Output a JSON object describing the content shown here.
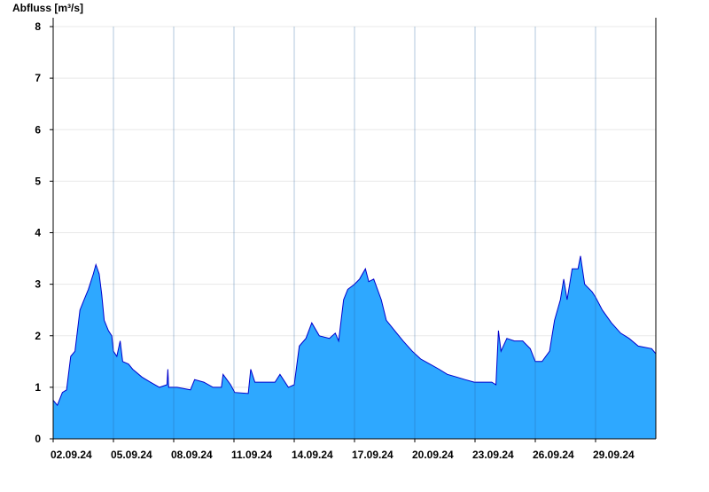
{
  "chart_data": {
    "type": "area",
    "ylabel": "Abfluss [m³/s]",
    "color": "#2ea8ff",
    "line_color": "#0000cc",
    "grid": true,
    "xlim": [
      "2024-09-02T00:00",
      "2024-10-02T00:00"
    ],
    "xticks": [
      {
        "value": "2024-09-02T00:00",
        "label": "02.09.24"
      },
      {
        "value": "2024-09-05T00:00",
        "label": "05.09.24"
      },
      {
        "value": "2024-09-08T00:00",
        "label": "08.09.24"
      },
      {
        "value": "2024-09-11T00:00",
        "label": "11.09.24"
      },
      {
        "value": "2024-09-14T00:00",
        "label": "14.09.24"
      },
      {
        "value": "2024-09-17T00:00",
        "label": "17.09.24"
      },
      {
        "value": "2024-09-20T00:00",
        "label": "20.09.24"
      },
      {
        "value": "2024-09-23T00:00",
        "label": "23.09.24"
      },
      {
        "value": "2024-09-26T00:00",
        "label": "26.09.24"
      },
      {
        "value": "2024-09-29T00:00",
        "label": "29.09.24"
      }
    ],
    "ylim": [
      0,
      8
    ],
    "yticks": [
      0,
      1,
      2,
      3,
      4,
      5,
      6,
      7,
      8
    ],
    "x": [
      "2024-09-02T00:00",
      "2024-09-02T05:00",
      "2024-09-02T11:00",
      "2024-09-02T16:00",
      "2024-09-02T21:00",
      "2024-09-03T02:00",
      "2024-09-03T08:00",
      "2024-09-03T13:00",
      "2024-09-03T18:00",
      "2024-09-04T00:00",
      "2024-09-04T03:00",
      "2024-09-04T07:00",
      "2024-09-04T10:00",
      "2024-09-04T13:00",
      "2024-09-04T18:00",
      "2024-09-04T22:00",
      "2024-09-05T00:00",
      "2024-09-05T04:00",
      "2024-09-05T08:00",
      "2024-09-05T11:00",
      "2024-09-05T18:00",
      "2024-09-05T23:00",
      "2024-09-06T10:00",
      "2024-09-06T20:00",
      "2024-09-07T07:00",
      "2024-09-07T16:00",
      "2024-09-07T17:00",
      "2024-09-07T18:00",
      "2024-09-08T04:00",
      "2024-09-08T20:00",
      "2024-09-09T01:00",
      "2024-09-09T12:00",
      "2024-09-09T23:00",
      "2024-09-10T09:00",
      "2024-09-10T11:00",
      "2024-09-10T20:00",
      "2024-09-11T01:00",
      "2024-09-11T17:00",
      "2024-09-11T20:00",
      "2024-09-12T01:00",
      "2024-09-12T14:00",
      "2024-09-13T01:00",
      "2024-09-13T07:00",
      "2024-09-13T17:00",
      "2024-09-14T00:00",
      "2024-09-14T06:00",
      "2024-09-14T14:00",
      "2024-09-14T21:00",
      "2024-09-15T06:00",
      "2024-09-15T18:00",
      "2024-09-16T01:00",
      "2024-09-16T05:00",
      "2024-09-16T11:00",
      "2024-09-16T16:00",
      "2024-09-17T00:00",
      "2024-09-17T06:00",
      "2024-09-17T13:00",
      "2024-09-17T17:00",
      "2024-09-17T23:00",
      "2024-09-18T08:00",
      "2024-09-18T14:00",
      "2024-09-19T00:00",
      "2024-09-19T10:00",
      "2024-09-19T21:00",
      "2024-09-20T07:00",
      "2024-09-20T18:00",
      "2024-09-21T05:00",
      "2024-09-21T15:00",
      "2024-09-22T02:00",
      "2024-09-22T12:00",
      "2024-09-22T23:00",
      "2024-09-23T10:00",
      "2024-09-23T20:00",
      "2024-09-24T01:00",
      "2024-09-24T04:00",
      "2024-09-24T07:00",
      "2024-09-24T14:00",
      "2024-09-24T23:00",
      "2024-09-25T09:00",
      "2024-09-25T18:00",
      "2024-09-26T00:00",
      "2024-09-26T08:00",
      "2024-09-26T17:00",
      "2024-09-26T23:00",
      "2024-09-27T06:00",
      "2024-09-27T10:00",
      "2024-09-27T14:00",
      "2024-09-27T20:00",
      "2024-09-28T03:00",
      "2024-09-28T06:00",
      "2024-09-28T11:00",
      "2024-09-28T20:00",
      "2024-09-29T00:00",
      "2024-09-29T08:00",
      "2024-09-29T19:00",
      "2024-09-30T06:00",
      "2024-09-30T16:00",
      "2024-10-01T03:00",
      "2024-10-01T19:00",
      "2024-10-02T00:00"
    ],
    "values": [
      0.75,
      0.65,
      0.9,
      0.95,
      1.6,
      1.7,
      2.5,
      2.7,
      2.9,
      3.2,
      3.38,
      3.2,
      2.8,
      2.3,
      2.1,
      2.0,
      1.7,
      1.6,
      1.9,
      1.5,
      1.45,
      1.35,
      1.2,
      1.1,
      1.0,
      1.05,
      1.35,
      1.0,
      1.0,
      0.95,
      1.15,
      1.1,
      1.0,
      1.0,
      1.25,
      1.05,
      0.9,
      0.88,
      1.35,
      1.1,
      1.1,
      1.1,
      1.25,
      1.0,
      1.05,
      1.8,
      1.95,
      2.25,
      2.0,
      1.95,
      2.05,
      1.9,
      2.7,
      2.9,
      3.0,
      3.1,
      3.3,
      3.05,
      3.1,
      2.7,
      2.3,
      2.1,
      1.9,
      1.7,
      1.55,
      1.45,
      1.35,
      1.25,
      1.2,
      1.15,
      1.1,
      1.1,
      1.1,
      1.05,
      2.1,
      1.7,
      1.95,
      1.9,
      1.9,
      1.75,
      1.5,
      1.5,
      1.7,
      2.3,
      2.7,
      3.1,
      2.7,
      3.3,
      3.3,
      3.55,
      3.0,
      2.85,
      2.75,
      2.5,
      2.25,
      2.05,
      1.95,
      1.8,
      1.75,
      1.65
    ]
  }
}
